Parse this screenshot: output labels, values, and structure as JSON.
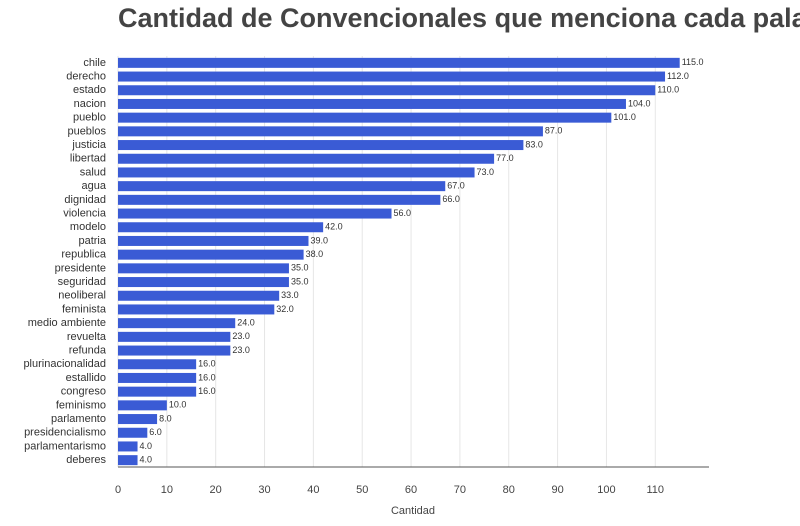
{
  "chart_data": {
    "type": "barh",
    "title": "Cantidad de Convencionales que menciona cada palabra",
    "x_label": "Cantidad",
    "categories": [
      "chile",
      "derecho",
      "estado",
      "nacion",
      "pueblo",
      "pueblos",
      "justicia",
      "libertad",
      "salud",
      "agua",
      "dignidad",
      "violencia",
      "modelo",
      "patria",
      "republica",
      "presidente",
      "seguridad",
      "neoliberal",
      "feminista",
      "medio ambiente",
      "revuelta",
      "refunda",
      "plurinacionalidad",
      "estallido",
      "congreso",
      "feminismo",
      "parlamento",
      "presidencialismo",
      "parlamentarismo",
      "deberes"
    ],
    "values": [
      115,
      112,
      110,
      104,
      101,
      87,
      83,
      77,
      73,
      67,
      66,
      56,
      42,
      39,
      38,
      35,
      35,
      33,
      32,
      24,
      23,
      23,
      16,
      16,
      16,
      10,
      8,
      6,
      4,
      4
    ],
    "value_labels": [
      "115.0",
      "112.0",
      "110.0",
      "104.0",
      "101.0",
      "87.0",
      "83.0",
      "77.0",
      "73.0",
      "67.0",
      "66.0",
      "56.0",
      "42.0",
      "39.0",
      "38.0",
      "35.0",
      "35.0",
      "33.0",
      "32.0",
      "24.0",
      "23.0",
      "23.0",
      "16.0",
      "16.0",
      "16.0",
      "10.0",
      "8.0",
      "6.0",
      "4.0",
      "4.0"
    ],
    "color": "#3a5bd5",
    "xlim": [
      0,
      121
    ],
    "xticks": [
      0,
      10,
      20,
      30,
      40,
      50,
      60,
      70,
      80,
      90,
      100,
      110
    ],
    "grid": true
  }
}
